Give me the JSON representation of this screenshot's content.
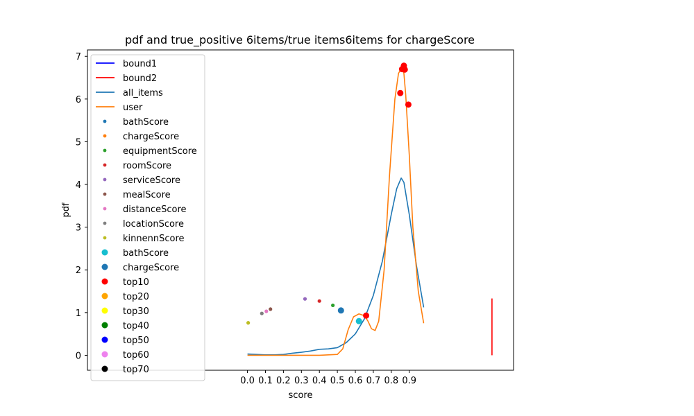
{
  "chart_data": {
    "type": "line",
    "title": "pdf and true_positive 6items/true items6items for chargeScore",
    "xlabel": "score",
    "ylabel": "pdf",
    "xlim": [
      -0.89,
      1.48
    ],
    "ylim": [
      -0.35,
      7.15
    ],
    "x_ticks": [
      0.0,
      0.1,
      0.2,
      0.3,
      0.4,
      0.5,
      0.6,
      0.7,
      0.8,
      0.9
    ],
    "x_tick_labels": [
      "0.0",
      "0.1",
      "0.2",
      "0.3",
      "0.4",
      "0.5",
      "0.6",
      "0.7",
      "0.8",
      "0.9"
    ],
    "y_ticks": [
      0,
      1,
      2,
      3,
      4,
      5,
      6,
      7
    ],
    "y_tick_labels": [
      "0",
      "1",
      "2",
      "3",
      "4",
      "5",
      "6",
      "7"
    ],
    "grid": false,
    "legend_position": "upper-left",
    "colors": {
      "bound1": "#0000ff",
      "bound2": "#ff0000",
      "all_items": "#1f77b4",
      "user": "#ff7f0e",
      "bathScore": "#1f77b4",
      "chargeScore": "#ff7f0e",
      "equipmentScore": "#2ca02c",
      "roomScore": "#d62728",
      "serviceScore": "#9467bd",
      "mealScore": "#8c564b",
      "distanceScore": "#e377c2",
      "locationScore": "#7f7f7f",
      "kinnennScore": "#bcbd22",
      "bathScore_large": "#17becf",
      "chargeScore_large": "#1f77b4",
      "top10": "#ff0000",
      "top20": "#ffa500",
      "top30": "#ffff00",
      "top40": "#008000",
      "top50": "#0000ff",
      "top60": "#ee82ee",
      "top70": "#000000"
    },
    "legend": [
      {
        "label": "bound1",
        "kind": "line",
        "color": "#0000ff"
      },
      {
        "label": "bound2",
        "kind": "line",
        "color": "#ff0000"
      },
      {
        "label": "all_items",
        "kind": "line",
        "color": "#1f77b4"
      },
      {
        "label": "user",
        "kind": "line",
        "color": "#ff7f0e"
      },
      {
        "label": "bathScore",
        "kind": "dot-small",
        "color": "#1f77b4"
      },
      {
        "label": "chargeScore",
        "kind": "dot-small",
        "color": "#ff7f0e"
      },
      {
        "label": "equipmentScore",
        "kind": "dot-small",
        "color": "#2ca02c"
      },
      {
        "label": "roomScore",
        "kind": "dot-small",
        "color": "#d62728"
      },
      {
        "label": "serviceScore",
        "kind": "dot-small",
        "color": "#9467bd"
      },
      {
        "label": "mealScore",
        "kind": "dot-small",
        "color": "#8c564b"
      },
      {
        "label": "distanceScore",
        "kind": "dot-small",
        "color": "#e377c2"
      },
      {
        "label": "locationScore",
        "kind": "dot-small",
        "color": "#7f7f7f"
      },
      {
        "label": "kinnennScore",
        "kind": "dot-small",
        "color": "#bcbd22"
      },
      {
        "label": "bathScore",
        "kind": "dot-large",
        "color": "#17becf"
      },
      {
        "label": "chargeScore",
        "kind": "dot-large",
        "color": "#1f77b4"
      },
      {
        "label": "top10",
        "kind": "dot-large",
        "color": "#ff0000"
      },
      {
        "label": "top20",
        "kind": "dot-large",
        "color": "#ffa500"
      },
      {
        "label": "top30",
        "kind": "dot-large",
        "color": "#ffff00"
      },
      {
        "label": "top40",
        "kind": "dot-large",
        "color": "#008000"
      },
      {
        "label": "top50",
        "kind": "dot-large",
        "color": "#0000ff"
      },
      {
        "label": "top60",
        "kind": "dot-large",
        "color": "#ee82ee"
      },
      {
        "label": "top70",
        "kind": "dot-large",
        "color": "#000000"
      }
    ],
    "series": [
      {
        "name": "all_items",
        "color": "#1f77b4",
        "x": [
          0.0,
          0.05,
          0.1,
          0.15,
          0.2,
          0.25,
          0.3,
          0.35,
          0.4,
          0.45,
          0.5,
          0.55,
          0.6,
          0.65,
          0.7,
          0.75,
          0.8,
          0.83,
          0.855,
          0.87,
          0.9,
          0.94,
          0.98
        ],
        "y": [
          0.03,
          0.02,
          0.01,
          0.01,
          0.02,
          0.05,
          0.07,
          0.1,
          0.14,
          0.15,
          0.18,
          0.3,
          0.5,
          0.85,
          1.4,
          2.2,
          3.3,
          3.9,
          4.15,
          4.05,
          3.3,
          2.1,
          1.12
        ]
      },
      {
        "name": "user",
        "color": "#ff7f0e",
        "x": [
          0.0,
          0.1,
          0.2,
          0.3,
          0.4,
          0.5,
          0.53,
          0.56,
          0.59,
          0.62,
          0.65,
          0.67,
          0.69,
          0.71,
          0.73,
          0.76,
          0.79,
          0.82,
          0.84,
          0.86,
          0.87,
          0.88,
          0.9,
          0.92,
          0.95,
          0.98
        ],
        "y": [
          0.0,
          0.0,
          0.0,
          0.0,
          0.0,
          0.02,
          0.15,
          0.6,
          0.9,
          0.97,
          0.93,
          0.8,
          0.62,
          0.58,
          0.8,
          2.0,
          4.2,
          6.0,
          6.6,
          6.75,
          6.6,
          6.1,
          4.7,
          3.0,
          1.5,
          0.75
        ]
      },
      {
        "name": "bound2",
        "color": "#ff0000",
        "x": [
          1.36,
          1.36
        ],
        "y": [
          0.0,
          1.33
        ]
      }
    ],
    "scatter_small": [
      {
        "name": "kinnennScore",
        "color": "#bcbd22",
        "x": 0.004,
        "y": 0.76
      },
      {
        "name": "locationScore",
        "color": "#7f7f7f",
        "x": 0.08,
        "y": 0.98
      },
      {
        "name": "distanceScore",
        "color": "#e377c2",
        "x": 0.105,
        "y": 1.03
      },
      {
        "name": "mealScore",
        "color": "#8c564b",
        "x": 0.128,
        "y": 1.08
      },
      {
        "name": "serviceScore",
        "color": "#9467bd",
        "x": 0.32,
        "y": 1.32
      },
      {
        "name": "roomScore",
        "color": "#d62728",
        "x": 0.4,
        "y": 1.27
      },
      {
        "name": "equipmentScore",
        "color": "#2ca02c",
        "x": 0.475,
        "y": 1.17
      }
    ],
    "scatter_large": [
      {
        "name": "chargeScore",
        "color": "#1f77b4",
        "x": 0.52,
        "y": 1.05
      },
      {
        "name": "bathScore",
        "color": "#17becf",
        "x": 0.62,
        "y": 0.8
      },
      {
        "name": "top10",
        "color": "#ff0000",
        "x": 0.66,
        "y": 0.93
      },
      {
        "name": "top10",
        "color": "#ff0000",
        "x": 0.85,
        "y": 6.14
      },
      {
        "name": "top10",
        "color": "#ff0000",
        "x": 0.86,
        "y": 6.7
      },
      {
        "name": "top10",
        "color": "#ff0000",
        "x": 0.87,
        "y": 6.78
      },
      {
        "name": "top10",
        "color": "#ff0000",
        "x": 0.875,
        "y": 6.69
      },
      {
        "name": "top10",
        "color": "#ff0000",
        "x": 0.895,
        "y": 5.87
      }
    ]
  }
}
